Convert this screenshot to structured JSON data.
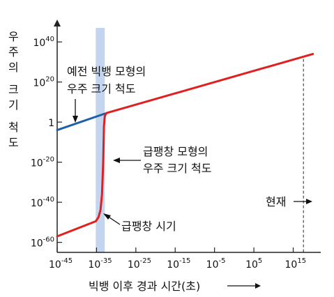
{
  "chart_data": {
    "type": "line",
    "title": "",
    "ylabel": "우주의 크기 척도",
    "xlabel": "빅뱅 이후 경과 시간(초)",
    "x_scale": "log",
    "y_scale": "log",
    "xlim": [
      -45,
      22
    ],
    "ylim": [
      -65,
      47
    ],
    "x_ticks": [
      {
        "base": "10",
        "exp": "-45",
        "value": -45
      },
      {
        "base": "10",
        "exp": "-35",
        "value": -35
      },
      {
        "base": "10",
        "exp": "-25",
        "value": -25
      },
      {
        "base": "10",
        "exp": "-15",
        "value": -15
      },
      {
        "base": "10",
        "exp": "-5",
        "value": -5
      },
      {
        "base": "10",
        "exp": "5",
        "value": 5
      },
      {
        "base": "10",
        "exp": "15",
        "value": 15
      }
    ],
    "y_ticks": [
      {
        "base": "10",
        "exp": "40",
        "value": 40
      },
      {
        "base": "10",
        "exp": "20",
        "value": 20
      },
      {
        "base": "1",
        "exp": "",
        "value": 0
      },
      {
        "base": "10",
        "exp": "-20",
        "value": -20
      },
      {
        "base": "10",
        "exp": "-40",
        "value": -40
      },
      {
        "base": "10",
        "exp": "-60",
        "value": -60
      }
    ],
    "inflation_band": {
      "x_from": -35.2,
      "x_to": -32.9,
      "color": "#c3d5ef"
    },
    "present_x": 17.6,
    "series": [
      {
        "color": "#1f5fa8",
        "points": [
          [
            -45,
            -4
          ],
          [
            -32.9,
            4.2
          ]
        ]
      },
      {
        "color": "#e02020",
        "points": [
          [
            -45,
            -57
          ],
          [
            -35.2,
            -49.5
          ],
          [
            -34.5,
            -47.5
          ],
          [
            -34,
            -44
          ],
          [
            -33.6,
            -36
          ],
          [
            -33.3,
            -20
          ],
          [
            -33.1,
            -2
          ],
          [
            -32.9,
            3
          ],
          [
            -32.5,
            4.5
          ],
          [
            20,
            34
          ]
        ]
      }
    ],
    "annotations": [
      {
        "id": "old",
        "lines": [
          "예전 빅뱅 모형의",
          "우주 크기 척도"
        ]
      },
      {
        "id": "inflation-model",
        "lines": [
          "급팽창 모형의",
          "우주 크기 척도"
        ]
      },
      {
        "id": "inflation-time",
        "lines": [
          "급팽창 시기"
        ]
      },
      {
        "id": "present",
        "lines": [
          "현재"
        ]
      }
    ]
  },
  "colors": {
    "axis": "#222222",
    "text": "#111111"
  }
}
